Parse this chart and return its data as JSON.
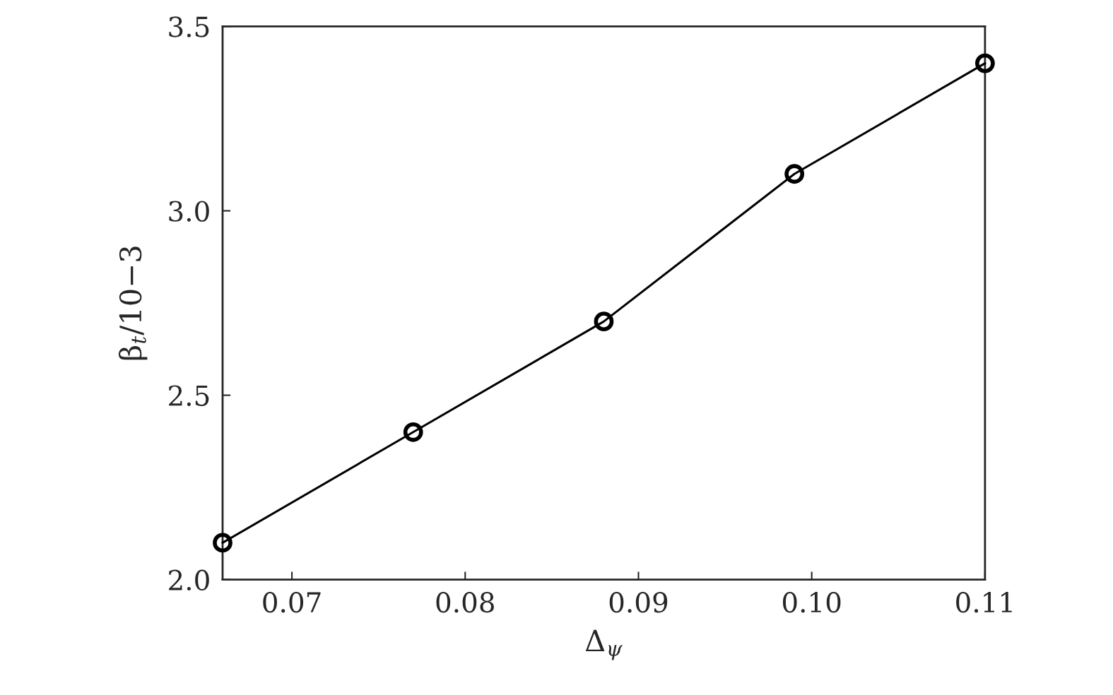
{
  "chart_data": {
    "type": "line",
    "xlabel": "Δ$_{ψ}$",
    "ylabel": "β$_{t}$/10−3",
    "x": [
      0.066,
      0.077,
      0.088,
      0.099,
      0.11
    ],
    "series": [
      {
        "color": "#000000",
        "values": [
          2.1,
          2.4,
          2.7,
          3.1,
          3.4
        ]
      }
    ],
    "marker": "circle",
    "line_style": "solid",
    "grid": false,
    "xlim": [
      0.066,
      0.11
    ],
    "xticks": [
      0.07,
      0.08,
      0.09,
      {
        "value": 0.1,
        "label": "0.10"
      },
      0.11
    ],
    "ylim": [
      2.0,
      3.5
    ],
    "yticks": [
      {
        "value": 2.0,
        "label": "2.0"
      },
      2.5,
      {
        "value": 3.0,
        "label": "3.0"
      },
      3.5
    ]
  }
}
